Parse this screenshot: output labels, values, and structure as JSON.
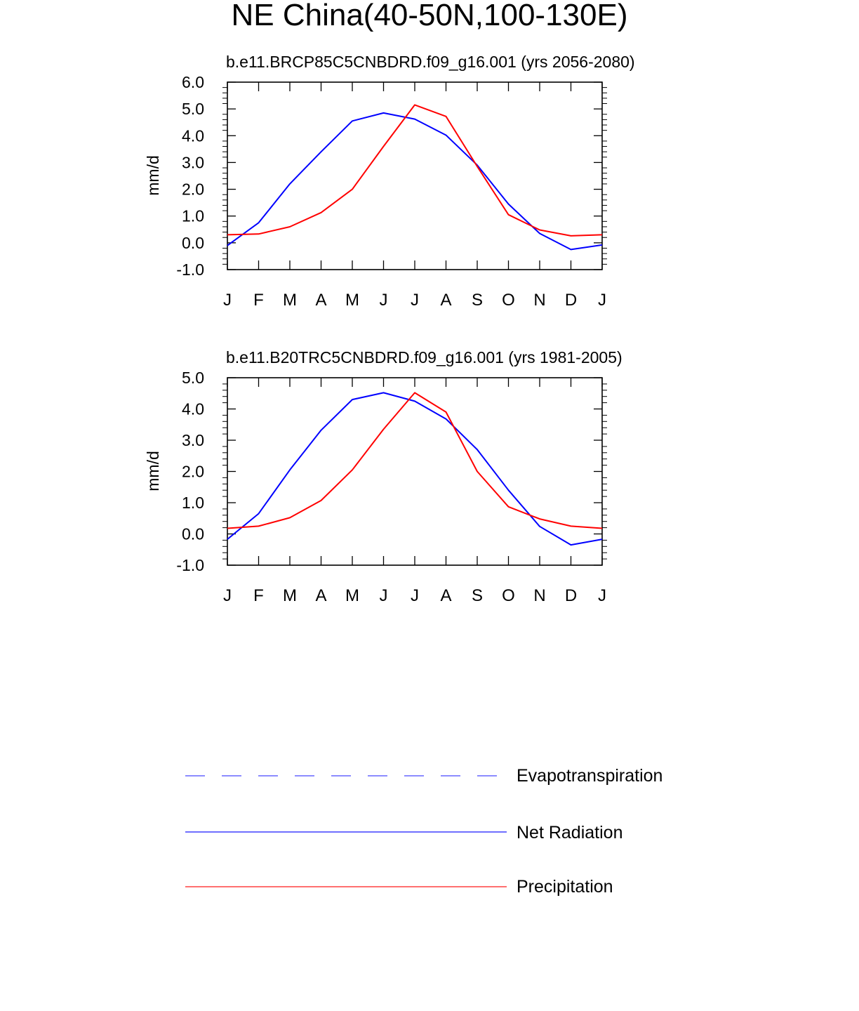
{
  "figure": {
    "title": "NE China(40-50N,100-130E)"
  },
  "legend": [
    {
      "label": "Evapotranspiration",
      "color": "#0000ff",
      "style": "dashed"
    },
    {
      "label": "Net Radiation",
      "color": "#0000ff",
      "style": "solid"
    },
    {
      "label": "Precipitation",
      "color": "#ff0000",
      "style": "solid"
    }
  ],
  "chart_data": [
    {
      "type": "line",
      "title": "b.e11.BRCP85C5CNBDRD.f09_g16.001 (yrs 2056-2080)",
      "xlabel": "",
      "ylabel": "mm/d",
      "categories": [
        "J",
        "F",
        "M",
        "A",
        "M",
        "J",
        "J",
        "A",
        "S",
        "O",
        "N",
        "D",
        "J"
      ],
      "ylim": [
        -1.0,
        6.0
      ],
      "yticks": [
        "6.0",
        "5.0",
        "4.0",
        "3.0",
        "2.0",
        "1.0",
        "0.0",
        "-1.0"
      ],
      "series": [
        {
          "name": "Net Radiation",
          "color": "#0000ff",
          "values": [
            -0.1,
            0.75,
            2.2,
            3.4,
            4.55,
            4.85,
            4.62,
            4.02,
            2.9,
            1.45,
            0.35,
            -0.25,
            -0.08
          ]
        },
        {
          "name": "Precipitation",
          "color": "#ff0000",
          "values": [
            0.3,
            0.33,
            0.6,
            1.13,
            2.0,
            3.6,
            5.15,
            4.72,
            2.85,
            1.05,
            0.48,
            0.26,
            0.3
          ]
        }
      ]
    },
    {
      "type": "line",
      "title": "b.e11.B20TRC5CNBDRD.f09_g16.001 (yrs 1981-2005)",
      "xlabel": "",
      "ylabel": "mm/d",
      "categories": [
        "J",
        "F",
        "M",
        "A",
        "M",
        "J",
        "J",
        "A",
        "S",
        "O",
        "N",
        "D",
        "J"
      ],
      "ylim": [
        -1.0,
        5.0
      ],
      "yticks": [
        "5.0",
        "4.0",
        "3.0",
        "2.0",
        "1.0",
        "0.0",
        "-1.0"
      ],
      "series": [
        {
          "name": "Net Radiation",
          "color": "#0000ff",
          "values": [
            -0.17,
            0.65,
            2.05,
            3.32,
            4.3,
            4.52,
            4.25,
            3.68,
            2.7,
            1.4,
            0.24,
            -0.35,
            -0.17
          ]
        },
        {
          "name": "Precipitation",
          "color": "#ff0000",
          "values": [
            0.18,
            0.25,
            0.52,
            1.07,
            2.05,
            3.35,
            4.52,
            3.9,
            2.0,
            0.87,
            0.48,
            0.25,
            0.18
          ]
        }
      ]
    }
  ]
}
